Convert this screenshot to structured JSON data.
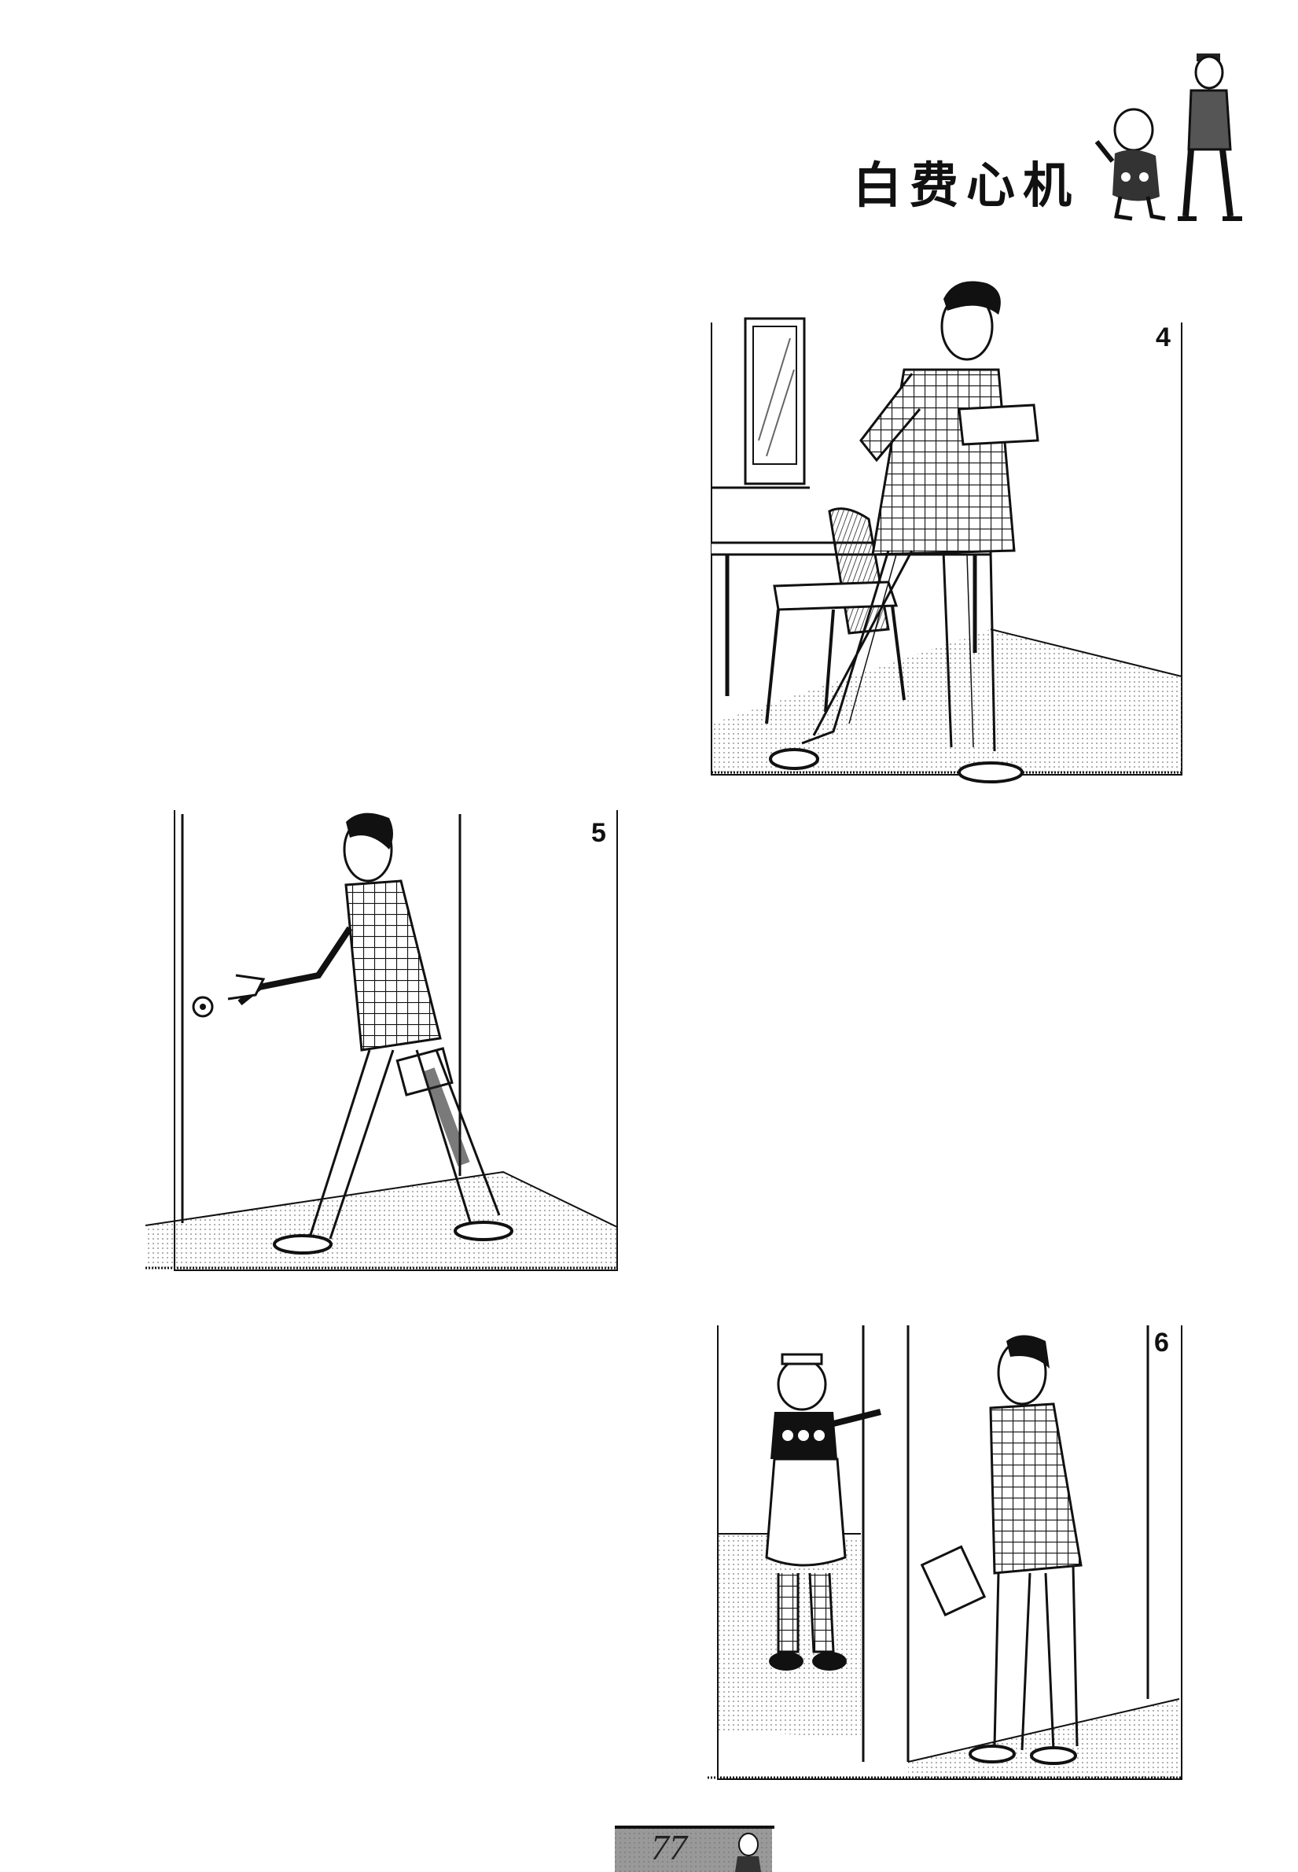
{
  "title": "白费心机",
  "panels": [
    {
      "number": "4"
    },
    {
      "number": "5"
    },
    {
      "number": "6"
    }
  ],
  "page_number": "77"
}
